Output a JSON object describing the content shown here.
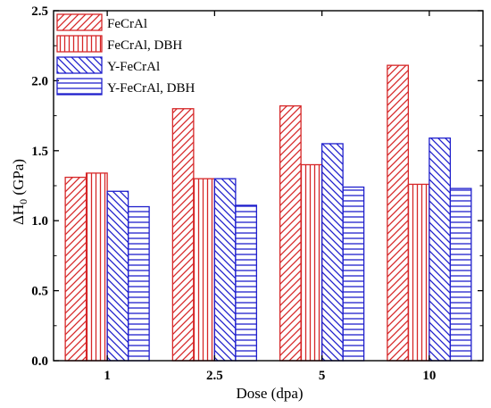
{
  "chart_data": {
    "type": "bar",
    "xlabel": "Dose (dpa)",
    "ylabel": "ΔH",
    "ylabel_sub": "0",
    "ylabel_unit": " (GPa)",
    "ylim": [
      0,
      2.5
    ],
    "yticks": [
      "0.0",
      "0.5",
      "1.0",
      "1.5",
      "2.0",
      "2.5"
    ],
    "categories": [
      "1",
      "2.5",
      "5",
      "10"
    ],
    "legend_position": "top-left",
    "grid": false,
    "series": [
      {
        "name": "FeCrAl",
        "color": "#d62728",
        "pattern": "diagonal-up",
        "values": [
          1.31,
          1.8,
          1.82,
          2.11
        ]
      },
      {
        "name": "FeCrAl, DBH",
        "color": "#d62728",
        "pattern": "vertical",
        "values": [
          1.34,
          1.3,
          1.4,
          1.26
        ]
      },
      {
        "name": "Y-FeCrAl",
        "color": "#1f1fcc",
        "pattern": "diagonal-down",
        "values": [
          1.21,
          1.3,
          1.55,
          1.59
        ]
      },
      {
        "name": "Y-FeCrAl, DBH",
        "color": "#1f1fcc",
        "pattern": "horizontal",
        "values": [
          1.1,
          1.11,
          1.24,
          1.23
        ]
      }
    ]
  }
}
